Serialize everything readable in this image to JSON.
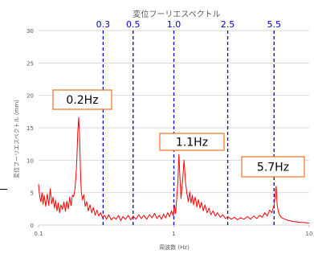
{
  "chart_data": {
    "type": "line",
    "title": "変位フーリエスペクトル",
    "xlabel": "周波数 (Hz)",
    "ylabel": "変位フーリエスペクトル (mm)",
    "x_scale": "log",
    "xlim": [
      0.1,
      10
    ],
    "ylim": [
      0,
      30
    ],
    "x_ticks": [
      "0.1",
      "1",
      "10"
    ],
    "y_ticks": [
      "0",
      "5",
      "10",
      "15",
      "20",
      "25",
      "30"
    ],
    "grid": "horizontal",
    "reference_lines": [
      {
        "x": 0.3,
        "label": "0.3"
      },
      {
        "x": 0.5,
        "label": "0.5"
      },
      {
        "x": 1.0,
        "label": "1.0"
      },
      {
        "x": 2.5,
        "label": "2.5"
      },
      {
        "x": 5.5,
        "label": "5.5"
      }
    ],
    "annotations": [
      {
        "text": "0.2Hz",
        "x": 0.2
      },
      {
        "text": "1.1Hz",
        "x": 1.1
      },
      {
        "text": "5.7Hz",
        "x": 5.7
      }
    ],
    "series": [
      {
        "color": "#ff0000",
        "points": [
          [
            0.1,
            6.3
          ],
          [
            0.102,
            4.4
          ],
          [
            0.104,
            3.6
          ],
          [
            0.106,
            5.0
          ],
          [
            0.108,
            3.2
          ],
          [
            0.11,
            4.6
          ],
          [
            0.113,
            2.9
          ],
          [
            0.116,
            4.8
          ],
          [
            0.119,
            3.0
          ],
          [
            0.122,
            5.6
          ],
          [
            0.125,
            3.3
          ],
          [
            0.128,
            4.3
          ],
          [
            0.131,
            2.6
          ],
          [
            0.134,
            3.8
          ],
          [
            0.137,
            2.2
          ],
          [
            0.14,
            3.4
          ],
          [
            0.143,
            1.9
          ],
          [
            0.146,
            3.1
          ],
          [
            0.15,
            2.4
          ],
          [
            0.154,
            3.6
          ],
          [
            0.158,
            2.1
          ],
          [
            0.162,
            3.7
          ],
          [
            0.166,
            2.5
          ],
          [
            0.17,
            4.3
          ],
          [
            0.174,
            3.0
          ],
          [
            0.178,
            4.6
          ],
          [
            0.182,
            4.4
          ],
          [
            0.186,
            5.6
          ],
          [
            0.189,
            7.5
          ],
          [
            0.192,
            10.2
          ],
          [
            0.195,
            14.5
          ],
          [
            0.198,
            16.6
          ],
          [
            0.201,
            13.8
          ],
          [
            0.204,
            8.4
          ],
          [
            0.207,
            5.2
          ],
          [
            0.211,
            3.9
          ],
          [
            0.216,
            4.7
          ],
          [
            0.221,
            2.9
          ],
          [
            0.227,
            3.6
          ],
          [
            0.233,
            2.2
          ],
          [
            0.24,
            3.1
          ],
          [
            0.247,
            1.9
          ],
          [
            0.254,
            2.7
          ],
          [
            0.262,
            1.5
          ],
          [
            0.27,
            2.3
          ],
          [
            0.279,
            1.4
          ],
          [
            0.288,
            1.9
          ],
          [
            0.297,
            1.1
          ],
          [
            0.307,
            1.5
          ],
          [
            0.318,
            0.9
          ],
          [
            0.33,
            1.6
          ],
          [
            0.345,
            0.8
          ],
          [
            0.36,
            1.2
          ],
          [
            0.375,
            0.9
          ],
          [
            0.39,
            1.5
          ],
          [
            0.405,
            0.7
          ],
          [
            0.42,
            1.3
          ],
          [
            0.44,
            0.9
          ],
          [
            0.46,
            1.5
          ],
          [
            0.48,
            0.8
          ],
          [
            0.5,
            1.4
          ],
          [
            0.525,
            0.9
          ],
          [
            0.55,
            1.6
          ],
          [
            0.575,
            1.0
          ],
          [
            0.6,
            1.5
          ],
          [
            0.63,
            0.9
          ],
          [
            0.66,
            1.6
          ],
          [
            0.69,
            1.1
          ],
          [
            0.72,
            1.8
          ],
          [
            0.75,
            1.0
          ],
          [
            0.78,
            1.5
          ],
          [
            0.81,
            0.9
          ],
          [
            0.84,
            1.7
          ],
          [
            0.87,
            1.1
          ],
          [
            0.9,
            1.9
          ],
          [
            0.93,
            1.3
          ],
          [
            0.96,
            2.2
          ],
          [
            0.99,
            1.4
          ],
          [
            1.01,
            3.1
          ],
          [
            1.03,
            1.8
          ],
          [
            1.05,
            4.2
          ],
          [
            1.07,
            6.6
          ],
          [
            1.09,
            10.9
          ],
          [
            1.11,
            7.2
          ],
          [
            1.13,
            4.1
          ],
          [
            1.16,
            6.9
          ],
          [
            1.19,
            10.0
          ],
          [
            1.22,
            6.5
          ],
          [
            1.25,
            4.8
          ],
          [
            1.28,
            3.6
          ],
          [
            1.31,
            5.1
          ],
          [
            1.34,
            3.4
          ],
          [
            1.37,
            4.6
          ],
          [
            1.4,
            3.1
          ],
          [
            1.44,
            4.3
          ],
          [
            1.48,
            2.8
          ],
          [
            1.52,
            3.9
          ],
          [
            1.56,
            2.6
          ],
          [
            1.6,
            3.5
          ],
          [
            1.65,
            2.2
          ],
          [
            1.7,
            3.1
          ],
          [
            1.76,
            1.9
          ],
          [
            1.82,
            2.6
          ],
          [
            1.88,
            1.6
          ],
          [
            1.95,
            2.2
          ],
          [
            2.02,
            1.4
          ],
          [
            2.1,
            1.9
          ],
          [
            2.2,
            1.2
          ],
          [
            2.3,
            1.6
          ],
          [
            2.4,
            1.0
          ],
          [
            2.5,
            1.3
          ],
          [
            2.65,
            0.9
          ],
          [
            2.8,
            1.2
          ],
          [
            2.95,
            0.8
          ],
          [
            3.1,
            1.1
          ],
          [
            3.3,
            0.9
          ],
          [
            3.5,
            1.3
          ],
          [
            3.7,
            0.9
          ],
          [
            3.9,
            1.4
          ],
          [
            4.1,
            1.0
          ],
          [
            4.3,
            1.5
          ],
          [
            4.5,
            1.2
          ],
          [
            4.7,
            1.9
          ],
          [
            4.9,
            1.4
          ],
          [
            5.1,
            2.3
          ],
          [
            5.3,
            1.9
          ],
          [
            5.5,
            3.1
          ],
          [
            5.6,
            4.4
          ],
          [
            5.65,
            5.3
          ],
          [
            5.7,
            6.0
          ],
          [
            5.75,
            4.6
          ],
          [
            5.8,
            3.2
          ],
          [
            5.9,
            2.2
          ],
          [
            6.05,
            1.5
          ],
          [
            6.3,
            1.1
          ],
          [
            6.6,
            0.9
          ],
          [
            7.0,
            0.7
          ],
          [
            7.5,
            0.6
          ],
          [
            8.0,
            0.5
          ],
          [
            8.6,
            0.4
          ],
          [
            9.2,
            0.4
          ],
          [
            10.0,
            0.3
          ]
        ]
      }
    ]
  }
}
